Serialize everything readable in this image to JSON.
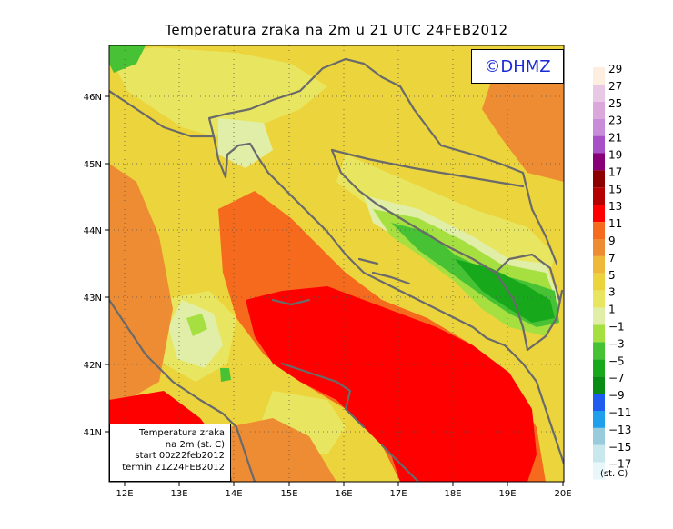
{
  "title": "Temperatura zraka na 2m u 21 UTC 24FEB2012",
  "logo": {
    "text": "©DHMZ"
  },
  "info_box": {
    "line1": "Temperatura zraka",
    "line2": "na 2m (st. C)",
    "line3": "start 00z22feb2012",
    "line4": "termin 21Z24FEB2012"
  },
  "latitude_labels": [
    "46N",
    "45N",
    "44N",
    "43N",
    "42N",
    "41N"
  ],
  "longitude_labels": [
    "12E",
    "13E",
    "14E",
    "15E",
    "16E",
    "17E",
    "18E",
    "19E",
    "20E"
  ],
  "legend": {
    "unit": "(st. C)",
    "labels": [
      "29",
      "27",
      "25",
      "23",
      "21",
      "19",
      "17",
      "15",
      "13",
      "11",
      "9",
      "7",
      "5",
      "3",
      "1",
      "−1",
      "−3",
      "−5",
      "−7",
      "−9",
      "−11",
      "−13",
      "−15",
      "−17"
    ],
    "colors": [
      "#fdeee0",
      "#e8c8e4",
      "#dca8dc",
      "#c88cd8",
      "#a850c8",
      "#880078",
      "#8c0000",
      "#b40000",
      "#ff0000",
      "#f56a1c",
      "#ee8c34",
      "#f0b838",
      "#ecd43c",
      "#e8e660",
      "#e0eea8",
      "#a6e040",
      "#46c234",
      "#18a81c",
      "#088c14",
      "#1e5cf0",
      "#20a0ec",
      "#98ccdc",
      "#c8e8ee",
      "#e8f8fa"
    ]
  },
  "colors": {
    "background_field": "#ecd43c",
    "sea_warm": "#ff0000",
    "sea_mild": "#f56a1c",
    "border_lines": "#6a6a6a",
    "logo_text": "#1a2bd6"
  }
}
